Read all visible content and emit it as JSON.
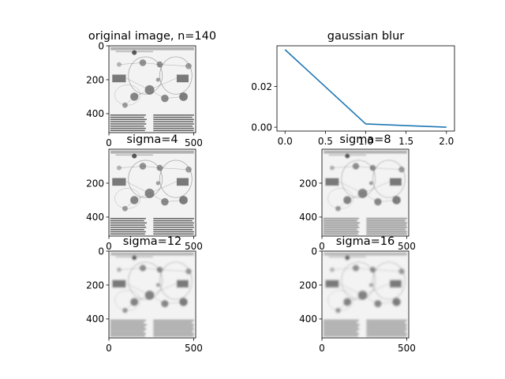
{
  "chart_data": [
    {
      "type": "image",
      "title": "original image, n=140",
      "xticks": [
        "0",
        "500"
      ],
      "yticks": [
        "0",
        "200",
        "400"
      ],
      "xlim": [
        0,
        512
      ],
      "ylim": [
        512,
        0
      ],
      "blur_sigma": 0.6
    },
    {
      "type": "line",
      "title": "gaussian blur",
      "x": [
        0.0,
        1.0,
        2.0
      ],
      "y": [
        0.0381,
        0.0016,
        0.0
      ],
      "xticks": [
        "0.0",
        "0.5",
        "1.0",
        "1.5",
        "2.0"
      ],
      "yticks": [
        "0.00",
        "0.02"
      ],
      "xlim": [
        -0.1,
        2.1
      ],
      "ylim": [
        -0.0019,
        0.04
      ],
      "color": "#1f77b4"
    },
    {
      "type": "image",
      "title": "sigma=4",
      "xticks": [
        "0",
        "500"
      ],
      "yticks": [
        "200",
        "400"
      ],
      "xlim": [
        0,
        512
      ],
      "ylim": [
        512,
        0
      ],
      "blur_sigma": 1.6
    },
    {
      "type": "image",
      "title": "sigma=8",
      "xticks": [
        "0",
        "500"
      ],
      "yticks": [
        "200",
        "400"
      ],
      "xlim": [
        0,
        512
      ],
      "ylim": [
        512,
        0
      ],
      "blur_sigma": 3.2
    },
    {
      "type": "image",
      "title": "sigma=12",
      "xticks": [
        "0",
        "500"
      ],
      "yticks": [
        "0",
        "200",
        "400"
      ],
      "xlim": [
        0,
        512
      ],
      "ylim": [
        512,
        0
      ],
      "blur_sigma": 4.8
    },
    {
      "type": "image",
      "title": "sigma=16",
      "xticks": [
        "0",
        "500"
      ],
      "yticks": [
        "0",
        "200",
        "400"
      ],
      "xlim": [
        0,
        512
      ],
      "ylim": [
        512,
        0
      ],
      "blur_sigma": 6.4
    }
  ]
}
